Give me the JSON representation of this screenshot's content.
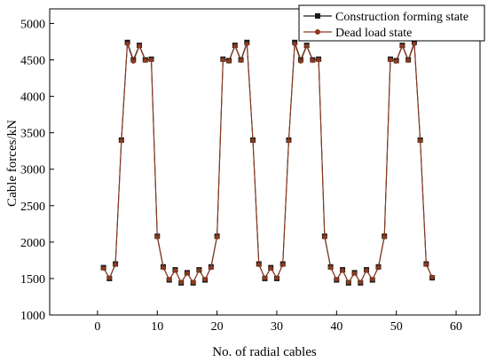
{
  "chart_data": {
    "type": "line",
    "xlabel": "No. of radial cables",
    "ylabel": "Cable forces/kN",
    "xlim": [
      -8,
      64
    ],
    "ylim": [
      1000,
      5200
    ],
    "xticks": [
      0,
      10,
      20,
      30,
      40,
      50,
      60
    ],
    "yticks": [
      1000,
      1500,
      2000,
      2500,
      3000,
      3500,
      4000,
      4500,
      5000
    ],
    "grid": false,
    "legend_position": "top-right",
    "x": [
      1,
      2,
      3,
      4,
      5,
      6,
      7,
      8,
      9,
      10,
      11,
      12,
      13,
      14,
      15,
      16,
      17,
      18,
      19,
      20,
      21,
      22,
      23,
      24,
      25,
      26,
      27,
      28,
      29,
      30,
      31,
      32,
      33,
      34,
      35,
      36,
      37,
      38,
      39,
      40,
      41,
      42,
      43,
      44,
      45,
      46,
      47,
      48,
      49,
      50,
      51,
      52,
      53,
      54,
      55,
      56
    ],
    "series": [
      {
        "name": "Construction forming state",
        "color": "#1a1a1a",
        "marker": "square",
        "values": [
          1650,
          1500,
          1700,
          3400,
          4740,
          4500,
          4700,
          4500,
          4510,
          2080,
          1660,
          1480,
          1620,
          1440,
          1580,
          1440,
          1620,
          1480,
          1660,
          2080,
          4510,
          4490,
          4700,
          4500,
          4740,
          3400,
          1700,
          1500,
          1650,
          1500,
          1700,
          3400,
          4740,
          4500,
          4700,
          4500,
          4510,
          2080,
          1660,
          1480,
          1620,
          1440,
          1580,
          1440,
          1620,
          1480,
          1660,
          2080,
          4510,
          4490,
          4700,
          4500,
          4740,
          3400,
          1700,
          1510
        ]
      },
      {
        "name": "Dead load state",
        "color": "#8b3a1e",
        "marker": "circle",
        "values": [
          1640,
          1510,
          1690,
          3390,
          4720,
          4480,
          4690,
          4490,
          4500,
          2070,
          1650,
          1490,
          1610,
          1450,
          1570,
          1450,
          1610,
          1490,
          1650,
          2070,
          4500,
          4480,
          4690,
          4490,
          4720,
          3390,
          1690,
          1510,
          1640,
          1510,
          1690,
          3390,
          4720,
          4480,
          4690,
          4490,
          4500,
          2070,
          1650,
          1490,
          1610,
          1450,
          1570,
          1450,
          1610,
          1490,
          1650,
          2070,
          4500,
          4480,
          4690,
          4490,
          4720,
          3390,
          1690,
          1520
        ]
      }
    ]
  }
}
